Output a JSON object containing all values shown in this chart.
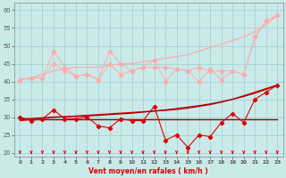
{
  "x": [
    0,
    1,
    2,
    3,
    4,
    5,
    6,
    7,
    8,
    9,
    10,
    11,
    12,
    13,
    14,
    15,
    16,
    17,
    18,
    19,
    20,
    21,
    22,
    23
  ],
  "line_rafales_max": [
    40.5,
    41.0,
    41.0,
    45.0,
    43.0,
    41.5,
    42.0,
    40.5,
    45.0,
    42.0,
    43.0,
    44.0,
    44.0,
    44.0,
    43.5,
    43.0,
    44.0,
    43.0,
    43.0,
    43.0,
    42.0,
    52.5,
    57.0,
    58.5
  ],
  "line_rafales_trend": [
    40.5,
    41.0,
    42.0,
    43.0,
    43.5,
    44.0,
    44.0,
    44.0,
    44.5,
    45.0,
    45.0,
    45.5,
    46.0,
    46.5,
    47.0,
    47.5,
    48.5,
    49.5,
    50.5,
    51.5,
    52.5,
    54.0,
    56.0,
    58.5
  ],
  "line_rafales_jagged": [
    40.5,
    41.0,
    41.0,
    48.5,
    44.0,
    41.5,
    42.0,
    40.5,
    48.5,
    45.0,
    43.0,
    44.0,
    46.0,
    40.0,
    43.5,
    43.0,
    40.0,
    43.5,
    40.5,
    43.0,
    42.0,
    52.5,
    57.0,
    58.5
  ],
  "line_vent_avg": [
    30.0,
    29.0,
    29.5,
    32.0,
    29.5,
    29.5,
    30.0,
    27.5,
    27.0,
    29.5,
    29.0,
    29.0,
    33.0,
    23.5,
    25.0,
    21.5,
    25.0,
    24.5,
    28.5,
    31.0,
    28.5,
    35.0,
    37.0,
    39.0
  ],
  "line_vent_flat": [
    29.5,
    29.5,
    29.5,
    29.5,
    29.5,
    29.5,
    29.5,
    29.5,
    29.5,
    29.5,
    29.5,
    29.5,
    29.5,
    29.5,
    29.5,
    29.5,
    29.5,
    29.5,
    29.5,
    29.5,
    29.5,
    29.5,
    29.5,
    29.5
  ],
  "line_vent_trend1": [
    29.0,
    29.3,
    29.6,
    29.9,
    30.1,
    30.3,
    30.5,
    30.7,
    30.9,
    31.1,
    31.3,
    31.5,
    31.7,
    31.9,
    32.1,
    32.5,
    33.0,
    33.5,
    34.2,
    35.0,
    36.0,
    37.0,
    38.0,
    39.0
  ],
  "line_vent_trend2": [
    29.5,
    29.6,
    29.8,
    30.0,
    30.1,
    30.2,
    30.3,
    30.5,
    30.7,
    30.9,
    31.1,
    31.4,
    31.7,
    32.0,
    32.4,
    32.8,
    33.2,
    33.7,
    34.3,
    35.0,
    35.8,
    36.7,
    37.8,
    39.0
  ],
  "background_color": "#caeaea",
  "grid_color": "#a0cccc",
  "line_color_light": "#ffaaaa",
  "line_color_dark": "#dd0000",
  "line_color_darkest": "#990000",
  "xlabel": "Vent moyen/en rafales ( km/h )",
  "ylim": [
    19,
    62
  ],
  "xlim": [
    -0.5,
    23.5
  ],
  "yticks": [
    20,
    25,
    30,
    35,
    40,
    45,
    50,
    55,
    60
  ]
}
